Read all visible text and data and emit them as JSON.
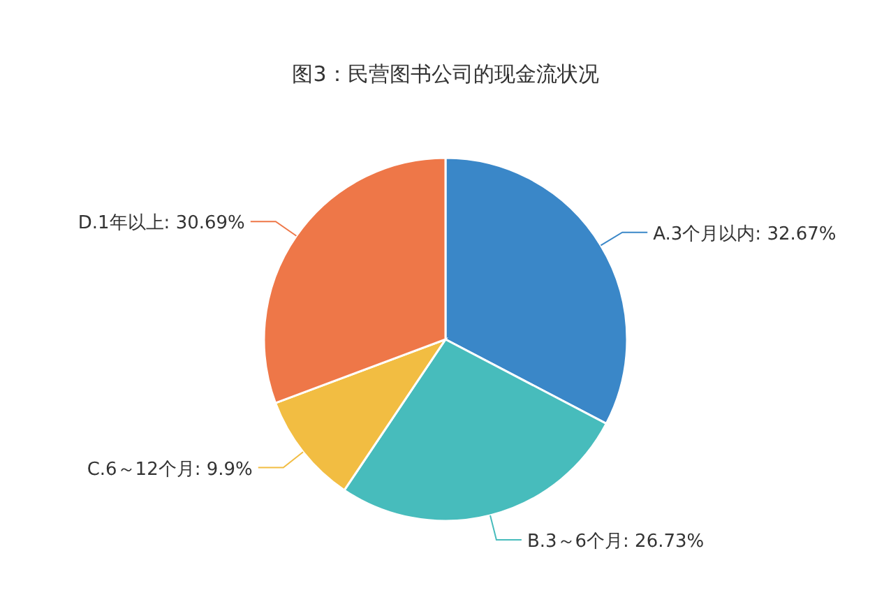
{
  "chart_data": {
    "type": "pie",
    "title": "图3：民营图书公司的现金流状况",
    "categories": [
      "A.3个月以内",
      "B.3～6个月",
      "C.6～12个月",
      "D.1年以上"
    ],
    "values": [
      32.67,
      26.73,
      9.9,
      30.69
    ],
    "value_labels": [
      "32.67%",
      "26.73%",
      "9.9%",
      "30.69%"
    ],
    "colors": [
      "#3a87c8",
      "#47bcbc",
      "#f2bd42",
      "#ee7748"
    ]
  }
}
